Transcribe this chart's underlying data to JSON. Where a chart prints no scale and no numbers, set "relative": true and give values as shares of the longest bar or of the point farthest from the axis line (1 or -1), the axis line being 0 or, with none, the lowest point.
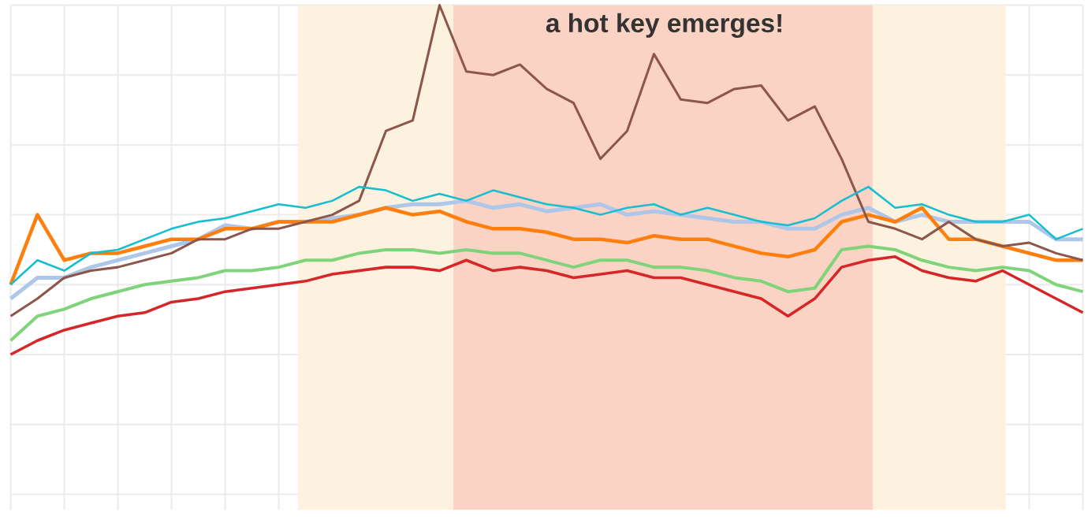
{
  "chart_data": {
    "type": "line",
    "relative": true,
    "grid": true,
    "tick_labels": false,
    "marker": "none",
    "line_style": "solid",
    "annotations": [
      "a hot key emerges!"
    ],
    "categories": [
      null,
      null,
      null,
      null,
      null,
      null,
      null,
      null,
      null,
      null,
      null,
      null,
      null,
      null,
      null,
      null,
      null,
      null,
      null,
      null,
      null,
      null,
      null,
      null,
      null,
      null,
      null,
      null,
      null,
      null,
      null,
      null,
      null,
      null,
      null,
      null,
      null,
      null,
      null,
      null,
      null
    ],
    "series": [
      {
        "color": "#aec7e8",
        "values": [
          0.16,
          0.22,
          0.22,
          0.25,
          0.27,
          0.29,
          0.31,
          0.33,
          0.37,
          0.36,
          0.38,
          0.38,
          0.39,
          0.4,
          0.42,
          0.43,
          0.43,
          0.44,
          0.42,
          0.43,
          0.41,
          0.42,
          0.43,
          0.4,
          0.41,
          0.4,
          0.39,
          0.38,
          0.38,
          0.36,
          0.36,
          0.4,
          0.42,
          0.38,
          0.4,
          0.38,
          0.38,
          0.38,
          0.38,
          0.33,
          0.33
        ]
      },
      {
        "color": "#ff7f0e",
        "values": [
          0.2,
          0.4,
          0.27,
          0.29,
          0.29,
          0.31,
          0.33,
          0.33,
          0.36,
          0.36,
          0.38,
          0.38,
          0.38,
          0.4,
          0.42,
          0.4,
          0.41,
          0.38,
          0.36,
          0.36,
          0.35,
          0.33,
          0.33,
          0.32,
          0.34,
          0.33,
          0.33,
          0.31,
          0.29,
          0.28,
          0.3,
          0.38,
          0.4,
          0.38,
          0.42,
          0.33,
          0.33,
          0.31,
          0.29,
          0.27,
          0.27
        ]
      },
      {
        "color": "#7fd37a",
        "values": [
          0.04,
          0.11,
          0.13,
          0.16,
          0.18,
          0.2,
          0.21,
          0.22,
          0.24,
          0.24,
          0.25,
          0.27,
          0.27,
          0.29,
          0.3,
          0.3,
          0.29,
          0.3,
          0.29,
          0.29,
          0.27,
          0.25,
          0.27,
          0.27,
          0.25,
          0.25,
          0.24,
          0.22,
          0.21,
          0.18,
          0.19,
          0.3,
          0.31,
          0.3,
          0.27,
          0.25,
          0.24,
          0.25,
          0.24,
          0.2,
          0.18
        ]
      },
      {
        "color": "#d62728",
        "values": [
          0,
          0.04,
          0.07,
          0.09,
          0.11,
          0.12,
          0.15,
          0.16,
          0.18,
          0.19,
          0.2,
          0.21,
          0.23,
          0.24,
          0.25,
          0.25,
          0.24,
          0.27,
          0.24,
          0.25,
          0.24,
          0.22,
          0.23,
          0.24,
          0.22,
          0.22,
          0.2,
          0.18,
          0.16,
          0.11,
          0.16,
          0.25,
          0.27,
          0.28,
          0.24,
          0.22,
          0.21,
          0.24,
          0.2,
          0.16,
          0.12
        ]
      },
      {
        "color": "#8c564b",
        "values": [
          0.11,
          0.16,
          0.22,
          0.24,
          0.25,
          0.27,
          0.29,
          0.33,
          0.33,
          0.36,
          0.36,
          0.38,
          0.4,
          0.44,
          0.64,
          0.67,
          1,
          0.81,
          0.8,
          0.83,
          0.76,
          0.72,
          0.56,
          0.64,
          0.86,
          0.73,
          0.72,
          0.76,
          0.77,
          0.67,
          0.71,
          0.56,
          0.38,
          0.36,
          0.33,
          0.38,
          0.33,
          0.31,
          0.32,
          0.29,
          0.27
        ]
      },
      {
        "color": "#17becf",
        "values": [
          0.2,
          0.27,
          0.24,
          0.29,
          0.3,
          0.33,
          0.36,
          0.38,
          0.39,
          0.41,
          0.43,
          0.42,
          0.44,
          0.48,
          0.47,
          0.44,
          0.46,
          0.44,
          0.47,
          0.45,
          0.43,
          0.42,
          0.4,
          0.42,
          0.43,
          0.4,
          0.42,
          0.4,
          0.38,
          0.37,
          0.39,
          0.44,
          0.48,
          0.42,
          0.43,
          0.4,
          0.38,
          0.38,
          0.4,
          0.33,
          0.36
        ]
      }
    ]
  }
}
